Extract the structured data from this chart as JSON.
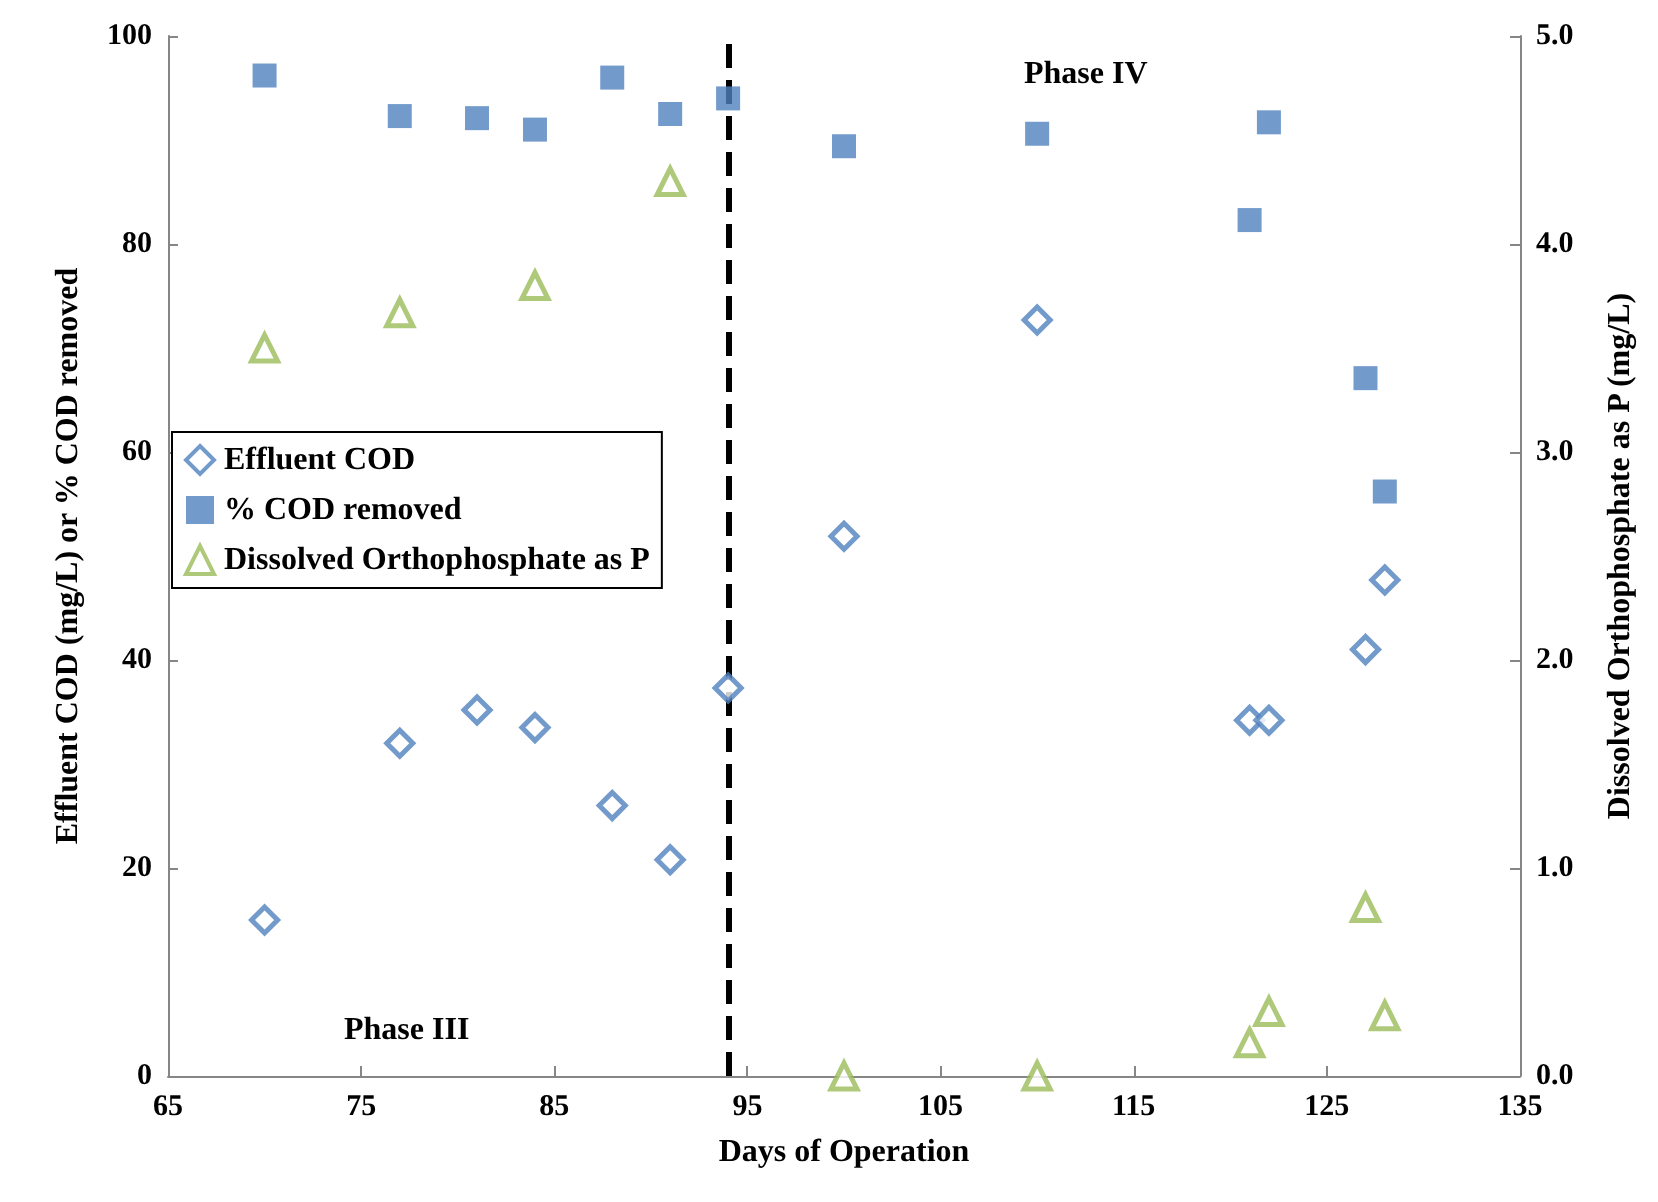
{
  "chart_data": {
    "type": "scatter",
    "xlabel": "Days of Operation",
    "ylabel": "Effluent COD (mg/L) or % COD removed",
    "y2label": "Dissolved Orthophosphate as P (mg/L)",
    "series": [
      {
        "name": "Effluent COD",
        "color": "#4f81bd",
        "marker": "diamond",
        "x": [
          70,
          77,
          81,
          84,
          88,
          91,
          94,
          100,
          110,
          121,
          122,
          127,
          128
        ],
        "values": [
          15,
          32,
          35.2,
          33.5,
          26,
          20.8,
          37.3,
          51.9,
          72.7,
          34.2,
          34.2,
          41,
          47.7
        ]
      },
      {
        "name": "% COD removed",
        "color": "#4f81bd",
        "marker": "square",
        "x": [
          70,
          77,
          81,
          84,
          88,
          91,
          94,
          100,
          110,
          121,
          122,
          127,
          128
        ],
        "values": [
          96.2,
          92.3,
          92.1,
          91,
          96,
          92.5,
          94,
          89.4,
          90.6,
          82.3,
          91.7,
          67.1,
          56.2
        ]
      },
      {
        "name": "Dissolved Orthophosphate as P",
        "color": "#9bbb59",
        "marker": "triangle",
        "axis": "y2",
        "x": [
          70,
          77,
          84,
          91,
          100,
          110,
          121,
          122,
          127,
          128
        ],
        "values": [
          3.5,
          3.67,
          3.8,
          4.3,
          0,
          0,
          0.16,
          0.31,
          0.81,
          0.29
        ]
      }
    ],
    "xlim": [
      65,
      135
    ],
    "xticks": [
      65,
      75,
      85,
      95,
      105,
      115,
      125,
      135
    ],
    "ylim": [
      0,
      100
    ],
    "yticks": [
      0,
      20,
      40,
      60,
      80,
      100
    ],
    "y2lim": [
      0,
      5
    ],
    "y2ticks": [
      {
        "value": 0,
        "label": "0.0"
      },
      {
        "value": 1,
        "label": "1.0"
      },
      {
        "value": 2,
        "label": "2.0"
      },
      {
        "value": 3,
        "label": "3.0"
      },
      {
        "value": 4,
        "label": "4.0"
      },
      {
        "value": 5,
        "label": "5.0"
      }
    ],
    "ref_lines": [
      {
        "axis": "x",
        "value": 94,
        "color": "#000000",
        "line_style": "dashed"
      }
    ],
    "annotations": [
      "Phase III",
      "Phase IV"
    ],
    "legend": "left",
    "grid": false
  }
}
